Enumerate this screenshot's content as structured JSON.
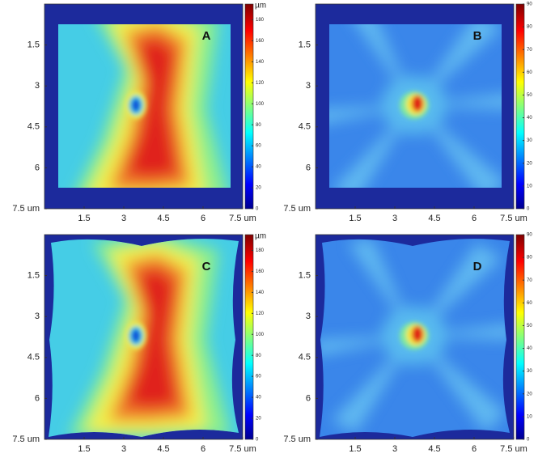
{
  "chart_data": [
    {
      "type": "heatmap",
      "label": "A",
      "xlim": [
        0,
        7.5
      ],
      "ylim": [
        0,
        7.5
      ],
      "yreverse": true,
      "xticks": [
        1.5,
        3,
        4.5,
        6,
        {
          "value": 7.5,
          "label": "7.5 um"
        }
      ],
      "yticks": [
        1.5,
        3,
        4.5,
        6,
        {
          "value": 7.5,
          "label": "7.5 um"
        }
      ],
      "colorbar": {
        "label": "µm",
        "lim": [
          0,
          195
        ],
        "ticks": [
          0,
          20,
          40,
          60,
          80,
          100,
          120,
          140,
          160,
          180
        ]
      }
    },
    {
      "type": "heatmap",
      "label": "B",
      "xlim": [
        0,
        7.5
      ],
      "ylim": [
        0,
        7.5
      ],
      "yreverse": true,
      "xticks": [
        1.5,
        3,
        4.5,
        6,
        {
          "value": 7.5,
          "label": "7.5 um"
        }
      ],
      "yticks": [
        1.5,
        3,
        4.5,
        6,
        {
          "value": 7.5,
          "label": "7.5 um"
        }
      ],
      "colorbar": {
        "lim": [
          0,
          90
        ],
        "ticks": [
          0,
          10,
          20,
          30,
          40,
          50,
          60,
          70,
          80,
          90
        ]
      }
    },
    {
      "type": "heatmap",
      "label": "C",
      "xlim": [
        0,
        7.5
      ],
      "ylim": [
        0,
        7.5
      ],
      "yreverse": true,
      "xticks": [
        1.5,
        3,
        4.5,
        6,
        {
          "value": 7.5,
          "label": "7.5 um"
        }
      ],
      "yticks": [
        1.5,
        3,
        4.5,
        6,
        {
          "value": 7.5,
          "label": "7.5 um"
        }
      ],
      "colorbar": {
        "label": "µm",
        "lim": [
          0,
          195
        ],
        "ticks": [
          0,
          20,
          40,
          60,
          80,
          100,
          120,
          140,
          160,
          180
        ]
      }
    },
    {
      "type": "heatmap",
      "label": "D",
      "xlim": [
        0,
        7.5
      ],
      "ylim": [
        0,
        7.5
      ],
      "yreverse": true,
      "xticks": [
        1.5,
        3,
        4.5,
        6,
        {
          "value": 7.5,
          "label": "7.5 um"
        }
      ],
      "yticks": [
        1.5,
        3,
        4.5,
        6,
        {
          "value": 7.5,
          "label": "7.5 um"
        }
      ],
      "colorbar": {
        "lim": [
          0,
          90
        ],
        "ticks": [
          0,
          10,
          20,
          30,
          40,
          50,
          60,
          70,
          80,
          90
        ]
      }
    }
  ]
}
